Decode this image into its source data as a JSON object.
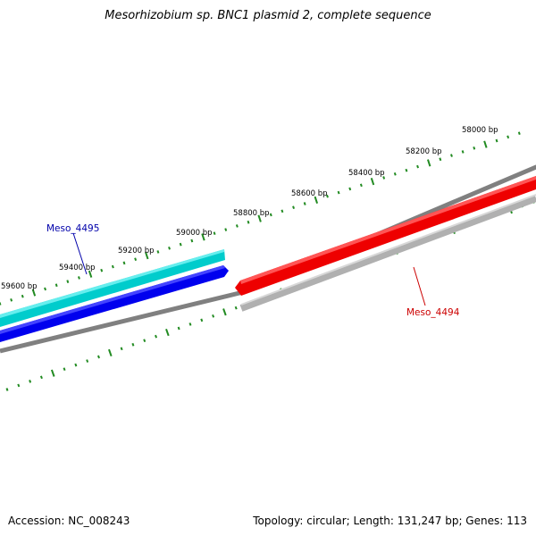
{
  "title": "Mesorhizobium sp. BNC1 plasmid 2, complete sequence",
  "footer": {
    "accession_label": "Accession:",
    "accession": "NC_008243",
    "topology_label": "Topology:",
    "topology": "circular",
    "length_label": "Length:",
    "length": "131,247 bp",
    "genes_label": "Genes:",
    "genes": "113"
  },
  "ticks": [
    "58000 bp",
    "58200 bp",
    "58400 bp",
    "58600 bp",
    "58800 bp",
    "59000 bp",
    "59200 bp",
    "59400 bp",
    "59600 bp"
  ],
  "genes": [
    {
      "name": "Meso_4495",
      "color": "#0000aa"
    },
    {
      "name": "Meso_4494",
      "color": "#cc0000"
    }
  ],
  "colors": {
    "tick_mark": "#228b22",
    "backbone": "#808080",
    "forward_cds": "#00cccc",
    "forward_gene": "#0000ee",
    "reverse_gene": "#ee0000",
    "reverse_cds": "#b0b0b0"
  }
}
